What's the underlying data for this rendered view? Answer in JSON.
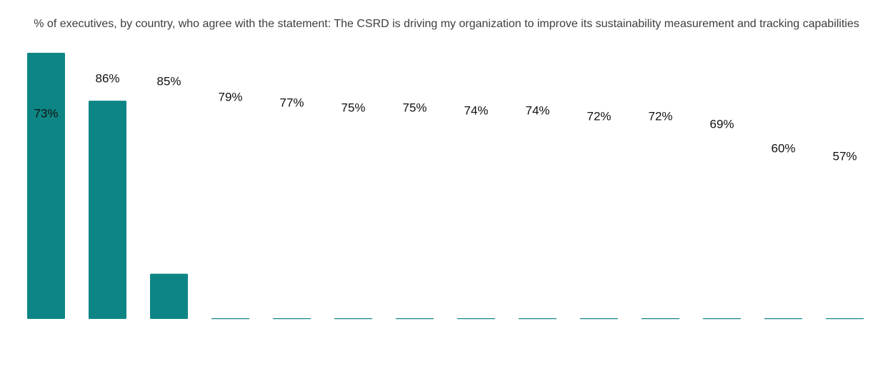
{
  "chart_data": {
    "type": "bar",
    "title": "% of executives, by country, who agree with the statement: The CSRD is driving my organization to improve its sustainability measurement and tracking capabilities",
    "categories": [
      "",
      "",
      "",
      "",
      "",
      "",
      "",
      "",
      "",
      "",
      "",
      "",
      "",
      ""
    ],
    "data_labels": [
      "73%",
      "86%",
      "85%",
      "79%",
      "77%",
      "75%",
      "75%",
      "74%",
      "74%",
      "72%",
      "72%",
      "69%",
      "60%",
      "57%"
    ],
    "bar_fill_fraction": [
      1.0,
      0.82,
      0.17,
      0,
      0,
      0,
      0,
      0,
      0,
      0,
      0,
      0,
      0,
      0
    ],
    "bar_color": "#0e8585",
    "ylim": [
      0,
      100
    ],
    "grid": false,
    "legend": "none"
  }
}
